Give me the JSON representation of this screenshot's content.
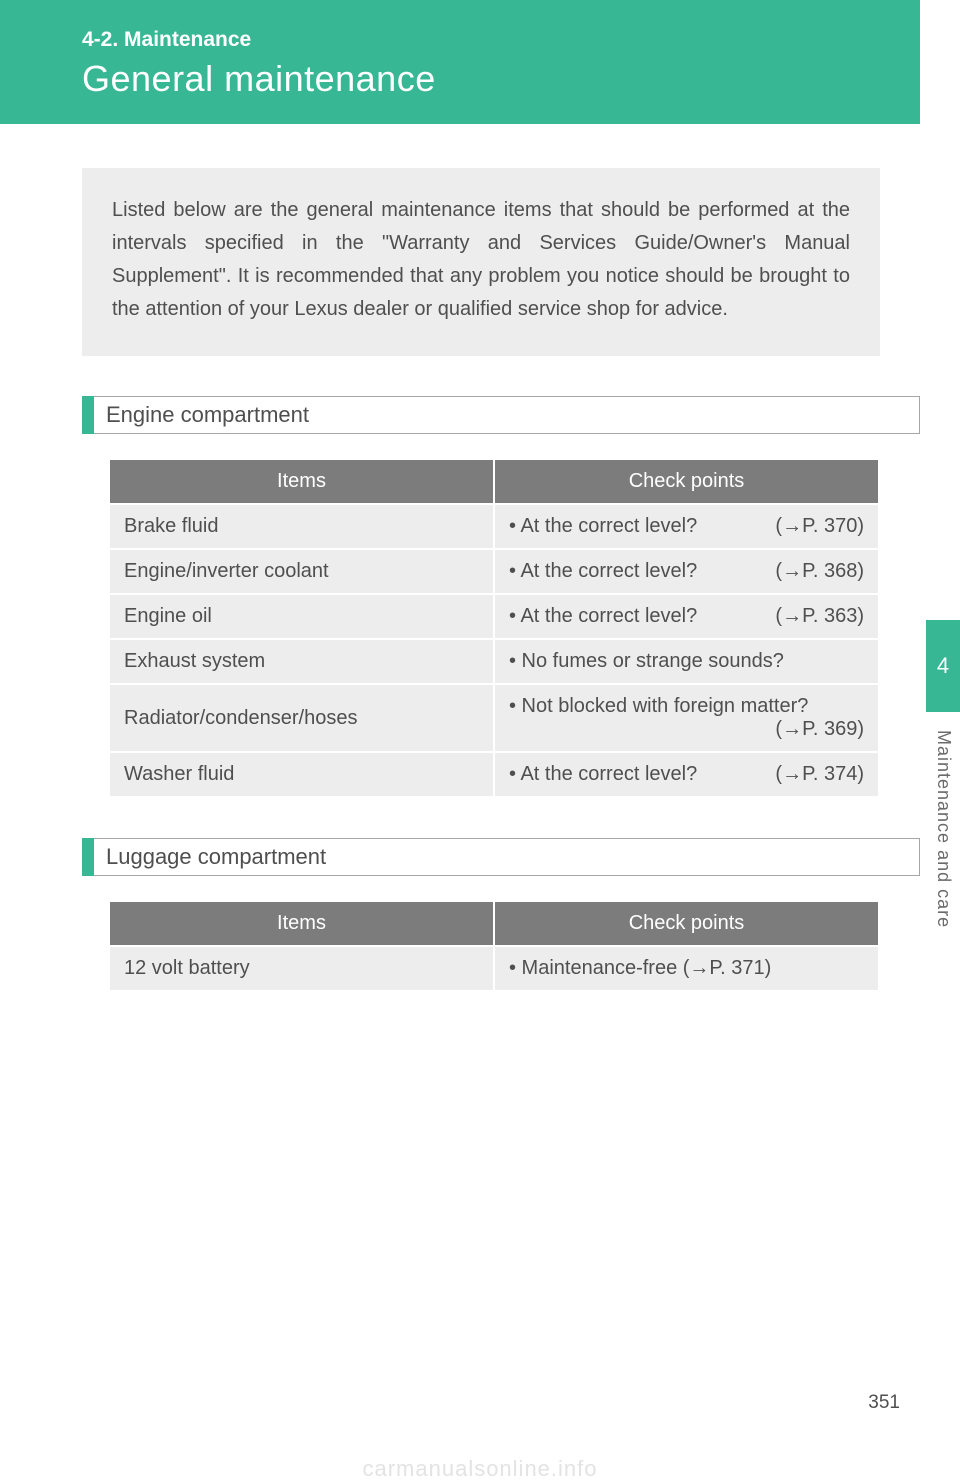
{
  "header": {
    "section": "4-2. Maintenance",
    "title": "General maintenance"
  },
  "intro": "Listed below are the general maintenance items that should be performed at the intervals specified in the \"Warranty and Services Guide/Owner's Manual Supplement\". It is recommended that any problem you notice should be brought to the attention of your Lexus dealer or qualified service shop for advice.",
  "sections": {
    "engine": {
      "heading": "Engine compartment",
      "columns": {
        "c1": "Items",
        "c2": "Check points"
      },
      "rows": {
        "r0": {
          "item": "Brake fluid",
          "check": "• At the correct level?",
          "ref": "(→P. 370)"
        },
        "r1": {
          "item": "Engine/inverter coolant",
          "check": "• At the correct level?",
          "ref": "(→P. 368)"
        },
        "r2": {
          "item": "Engine oil",
          "check": "• At the correct level?",
          "ref": "(→P. 363)"
        },
        "r3": {
          "item": "Exhaust system",
          "check": "• No fumes or strange sounds?",
          "ref": ""
        },
        "r4": {
          "item": "Radiator/condenser/hoses",
          "check": "• Not blocked with foreign matter?",
          "ref": "(→P. 369)"
        },
        "r5": {
          "item": "Washer fluid",
          "check": "• At the correct level?",
          "ref": "(→P. 374)"
        }
      }
    },
    "luggage": {
      "heading": "Luggage compartment",
      "columns": {
        "c1": "Items",
        "c2": "Check points"
      },
      "rows": {
        "r0": {
          "item": "12 volt battery",
          "check": "• Maintenance-free (→P. 371)"
        }
      }
    }
  },
  "side": {
    "tab": "4",
    "label": "Maintenance and care"
  },
  "page": "351",
  "watermark": "carmanualsonline.info",
  "colors": {
    "accent": "#38b795",
    "grey_fill": "#ededed",
    "th_bg": "#7c7c7c",
    "text": "#4f4f4f"
  }
}
